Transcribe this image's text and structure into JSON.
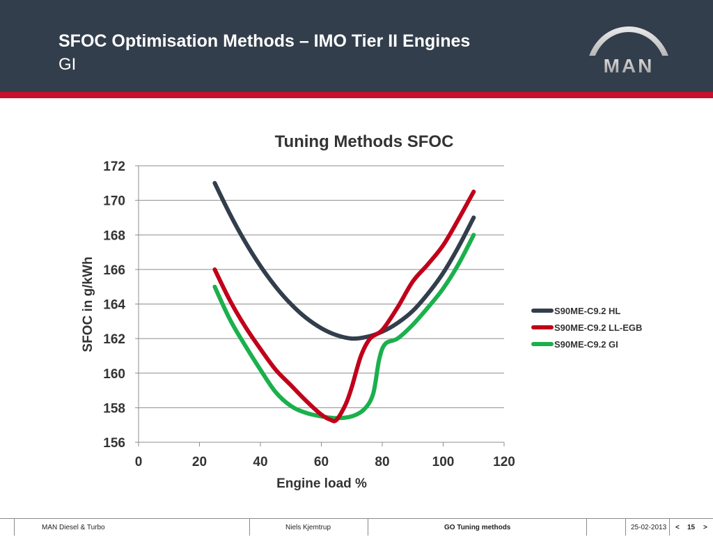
{
  "header": {
    "title": "SFOC Optimisation Methods – IMO Tier II Engines",
    "subtitle": "GI",
    "logo_text": "MAN",
    "bg_color": "#333e4c",
    "accent_color": "#c8102e"
  },
  "chart_data": {
    "type": "line",
    "title": "Tuning Methods SFOC",
    "xlabel": "Engine load %",
    "ylabel": "SFOC in g/kWh",
    "xlim": [
      0,
      120
    ],
    "ylim": [
      156,
      172
    ],
    "x_ticks": [
      "0",
      "20",
      "40",
      "60",
      "80",
      "100",
      "120"
    ],
    "y_ticks": [
      "156",
      "158",
      "160",
      "162",
      "164",
      "166",
      "168",
      "170",
      "172"
    ],
    "grid": "horizontal",
    "legend_position": "right",
    "series": [
      {
        "name": "S90ME-C9.2 HL",
        "color": "#333e4c",
        "points": [
          [
            25,
            171
          ],
          [
            30,
            169.2
          ],
          [
            35,
            167.6
          ],
          [
            40,
            166.2
          ],
          [
            45,
            165.0
          ],
          [
            50,
            164.0
          ],
          [
            55,
            163.2
          ],
          [
            60,
            162.6
          ],
          [
            65,
            162.2
          ],
          [
            70,
            162.0
          ],
          [
            75,
            162.1
          ],
          [
            80,
            162.4
          ],
          [
            85,
            162.9
          ],
          [
            90,
            163.6
          ],
          [
            95,
            164.6
          ],
          [
            100,
            165.8
          ],
          [
            105,
            167.3
          ],
          [
            110,
            169.0
          ]
        ]
      },
      {
        "name": "S90ME-C9.2 LL-EGB",
        "color": "#c0001a",
        "points": [
          [
            25,
            166
          ],
          [
            30,
            164.2
          ],
          [
            35,
            162.7
          ],
          [
            40,
            161.4
          ],
          [
            45,
            160.2
          ],
          [
            50,
            159.3
          ],
          [
            55,
            158.4
          ],
          [
            60,
            157.6
          ],
          [
            63,
            157.3
          ],
          [
            65,
            157.3
          ],
          [
            68,
            158.2
          ],
          [
            70,
            159.2
          ],
          [
            73,
            161.0
          ],
          [
            76,
            162.0
          ],
          [
            80,
            162.5
          ],
          [
            85,
            163.8
          ],
          [
            90,
            165.3
          ],
          [
            95,
            166.3
          ],
          [
            100,
            167.4
          ],
          [
            105,
            168.9
          ],
          [
            110,
            170.5
          ]
        ]
      },
      {
        "name": "S90ME-C9.2 GI",
        "color": "#1ab04c",
        "points": [
          [
            25,
            165
          ],
          [
            30,
            163.1
          ],
          [
            35,
            161.6
          ],
          [
            40,
            160.2
          ],
          [
            45,
            158.9
          ],
          [
            50,
            158.1
          ],
          [
            55,
            157.7
          ],
          [
            60,
            157.5
          ],
          [
            65,
            157.4
          ],
          [
            70,
            157.5
          ],
          [
            74,
            157.9
          ],
          [
            77,
            158.8
          ],
          [
            79,
            160.8
          ],
          [
            81,
            161.7
          ],
          [
            85,
            162.0
          ],
          [
            90,
            162.8
          ],
          [
            95,
            163.8
          ],
          [
            100,
            164.9
          ],
          [
            105,
            166.3
          ],
          [
            110,
            168.0
          ]
        ]
      }
    ]
  },
  "footer": {
    "company": "MAN Diesel & Turbo",
    "author": "Niels Kjemtrup",
    "topic": "GO Tuning methods",
    "date": "25-02-2013",
    "prev": "<",
    "page": "15",
    "next": ">"
  }
}
